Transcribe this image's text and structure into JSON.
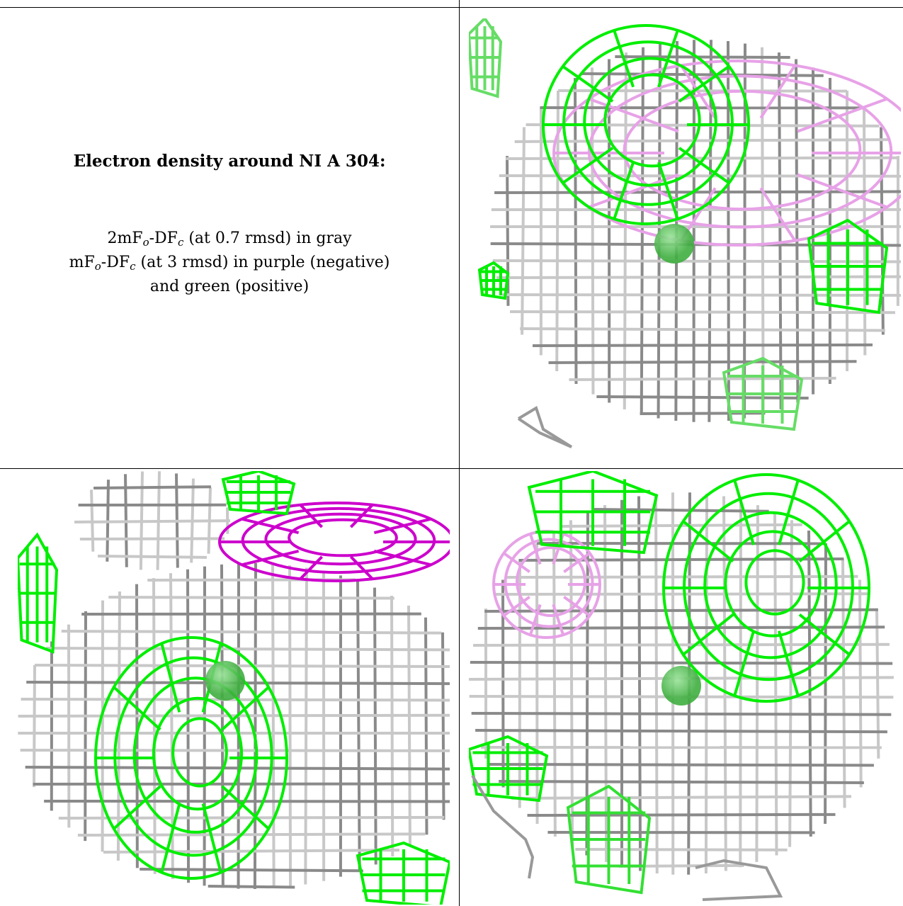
{
  "caption": {
    "title": "Electron density around NI A 304:",
    "line1_a": "2mF",
    "line1_sub1": "o",
    "line1_b": "-DF",
    "line1_sub2": "c",
    "line1_c": " (at 0.7 rmsd) in gray",
    "line2_a": "mF",
    "line2_sub1": "o",
    "line2_b": "-DF",
    "line2_sub2": "c",
    "line2_c": " (at 3 rmsd) in purple (negative)",
    "line3": "and green (positive)"
  },
  "colors": {
    "gray_mesh": "#8a8a8a",
    "gray_mesh_light": "#c8c8c8",
    "positive_mesh": "#00ee00",
    "negative_mesh": "#cc00cc",
    "negative_mesh_light": "#e7a2e7",
    "nickel_atom": "#3fae3f"
  },
  "panels": [
    {
      "name": "top-right-view",
      "atom": "NI A 304"
    },
    {
      "name": "bottom-left-view",
      "atom": "NI A 304"
    },
    {
      "name": "bottom-right-view",
      "atom": "NI A 304"
    }
  ]
}
